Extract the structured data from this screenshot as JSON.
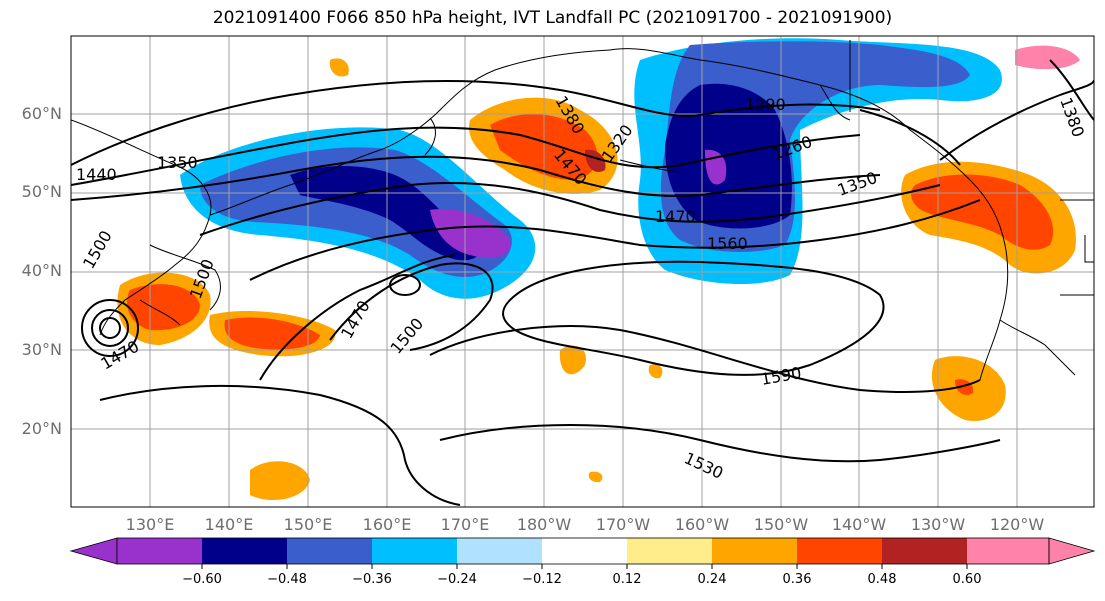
{
  "title": "2021091400 F066 850 hPa height, IVT Landfall PC (2021091700 - 2021091900)",
  "lat_labels": [
    "60°N",
    "50°N",
    "40°N",
    "30°N",
    "20°N"
  ],
  "lon_labels": [
    "130°E",
    "140°E",
    "150°E",
    "160°E",
    "170°E",
    "180°W",
    "170°W",
    "160°W",
    "150°W",
    "140°W",
    "130°W",
    "120°W"
  ],
  "contour_labels": [
    "1350",
    "1440",
    "1380",
    "1470",
    "1320",
    "1290",
    "1260",
    "1350",
    "1470",
    "1560",
    "1500",
    "1500",
    "1470",
    "1500",
    "1470",
    "1590",
    "1530",
    "1380"
  ],
  "colorbar": {
    "colors": [
      "#9932cc",
      "#00008b",
      "#3a5fcd",
      "#00bfff",
      "#b0e2ff",
      "#ffffff",
      "#ffec8b",
      "#ffa500",
      "#ff4500",
      "#b22222",
      "#ff82ab"
    ],
    "tick_labels": [
      "−0.60",
      "−0.48",
      "−0.36",
      "−0.24",
      "−0.12",
      "0.12",
      "0.24",
      "0.36",
      "0.48",
      "0.60"
    ]
  }
}
